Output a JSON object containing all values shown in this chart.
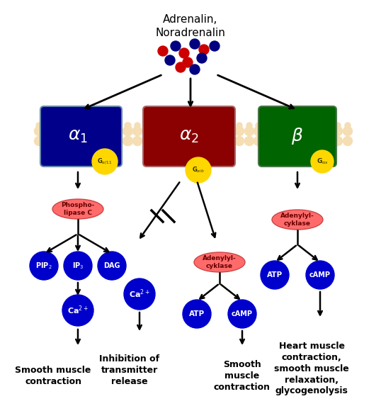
{
  "title": "Adrenalin,\nNoradrenalin",
  "bg_color": "#ffffff",
  "receptor_labels": [
    "α₁",
    "α₂",
    "β"
  ],
  "receptor_colors": [
    "#00008B",
    "#8B0000",
    "#006400"
  ],
  "g_protein_labels": [
    "Gα/11",
    "Gαib",
    "Gαs"
  ],
  "membrane_color": "#F5DEB3",
  "yellow_ball": "#FFD700",
  "blue_circle": "#0000CD",
  "pink_enzyme": "#FF6B6B",
  "arrow_color": "#000000",
  "dot_red": "#CC0000",
  "dot_blue": "#000080"
}
